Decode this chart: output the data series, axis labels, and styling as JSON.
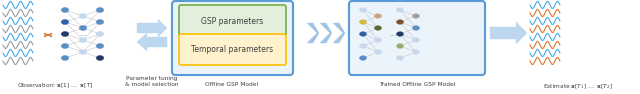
{
  "fig_width": 6.4,
  "fig_height": 0.94,
  "dpi": 100,
  "bg_color": "#ffffff",
  "labels": {
    "obs": "Observation: $\\mathbf{x}$[1] ...  $\\mathbf{x}$[T]",
    "param": "Parameter tuning\n& model selection",
    "offline": "Offline GSP Model",
    "trained": "Trained Offline GSP Model",
    "estimate": "Estimate $\\mathbf{x}$[$T_1$] ...  $\\mathbf{x}$[$T_2$]",
    "gsp_param": "GSP parameters",
    "temp_param": "Temporal parameters"
  },
  "colors": {
    "wave_blue": "#4BAEE8",
    "wave_orange": "#E07B39",
    "wave_gray": "#A0A0A0",
    "node_blue_mid": "#5B8DC8",
    "node_blue_dark": "#2E5FA3",
    "node_blue_light": "#C5D8EE",
    "node_orange": "#E07B39",
    "node_navy": "#1F3864",
    "node_yellow": "#D4B83A",
    "node_olive": "#556B2F",
    "node_green": "#70AD47",
    "node_lime": "#9DC53F",
    "node_gray": "#A0A0A0",
    "node_brown": "#7B4F2E",
    "node_dark_blue": "#2E4A7F",
    "node_tan": "#C8A882",
    "node_sage": "#8FAF6A",
    "box_blue_edge": "#5B9BD5",
    "box_blue_fill": "#EBF3FB",
    "box_green_edge": "#70AD47",
    "box_green_fill": "#E2EFDA",
    "box_yellow_edge": "#FFC000",
    "box_yellow_fill": "#FFF2CC",
    "arrow_blue": "#5B9BD5",
    "arrow_blue_fill": "#BDD7EE"
  }
}
